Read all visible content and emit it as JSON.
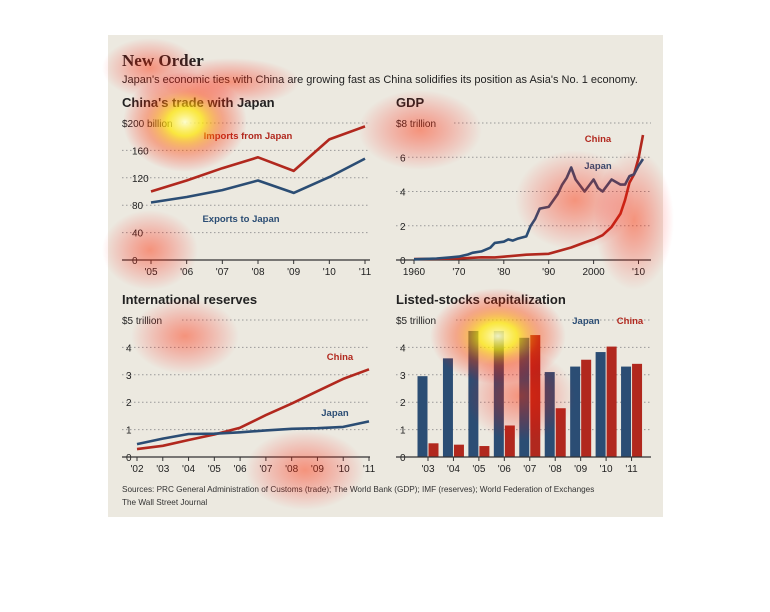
{
  "header": {
    "title": "New Order",
    "subtitle": "Japan's economic ties with China are growing fast as China solidifies its position as Asia's No. 1 economy."
  },
  "footer": {
    "sources": "Sources: PRC General Administration of Customs (trade); The World Bank (GDP); IMF (reserves); World Federation of Exchanges",
    "credit": "The Wall Street Journal"
  },
  "colors": {
    "background": "#ece9e0",
    "china": "#b1281e",
    "japan": "#2b4d74",
    "grid": "#999999",
    "text": "#222222"
  },
  "chart_data": [
    {
      "id": "trade",
      "type": "line",
      "title": "China's trade with Japan",
      "unit_label": "$200 billion",
      "x": [
        "'05",
        "'06",
        "'07",
        "'08",
        "'09",
        "'10",
        "'11"
      ],
      "yticks": [
        "0",
        "40",
        "80",
        "120",
        "160"
      ],
      "ylim": [
        0,
        200
      ],
      "series": [
        {
          "name": "Imports from Japan",
          "color": "#b1281e",
          "values": [
            100,
            116,
            134,
            150,
            130,
            176,
            195
          ]
        },
        {
          "name": "Exports to Japan",
          "color": "#2b4d74",
          "values": [
            84,
            92,
            102,
            116,
            98,
            121,
            148
          ]
        }
      ]
    },
    {
      "id": "gdp",
      "type": "line",
      "title": "GDP",
      "unit_label": "$8 trillion",
      "xticks": [
        "1960",
        "'70",
        "'80",
        "'90",
        "2000",
        "'10"
      ],
      "yticks": [
        "0",
        "2",
        "4",
        "6"
      ],
      "xlim": [
        1960,
        2011
      ],
      "ylim": [
        0,
        8
      ],
      "series": [
        {
          "name": "China",
          "color": "#b1281e",
          "x": [
            1960,
            1965,
            1970,
            1975,
            1978,
            1980,
            1985,
            1990,
            1995,
            1998,
            2000,
            2002,
            2004,
            2006,
            2007,
            2008,
            2009,
            2010,
            2011
          ],
          "values": [
            0.06,
            0.07,
            0.09,
            0.16,
            0.15,
            0.19,
            0.31,
            0.36,
            0.73,
            1.02,
            1.2,
            1.45,
            1.93,
            2.71,
            3.49,
            4.52,
            4.99,
            5.93,
            7.3
          ]
        },
        {
          "name": "Japan",
          "color": "#2b4d74",
          "x": [
            1960,
            1965,
            1968,
            1970,
            1972,
            1973,
            1975,
            1977,
            1978,
            1980,
            1981,
            1982,
            1983,
            1985,
            1986,
            1987,
            1988,
            1990,
            1992,
            1993,
            1994,
            1995,
            1996,
            1998,
            2000,
            2001,
            2002,
            2004,
            2006,
            2007,
            2008,
            2009,
            2010,
            2011
          ],
          "values": [
            0.04,
            0.09,
            0.15,
            0.2,
            0.32,
            0.42,
            0.5,
            0.72,
            1.0,
            1.07,
            1.2,
            1.13,
            1.24,
            1.38,
            2.0,
            2.4,
            3.0,
            3.1,
            3.85,
            4.4,
            4.8,
            5.4,
            4.7,
            4.0,
            4.7,
            4.2,
            4.0,
            4.7,
            4.4,
            4.4,
            4.9,
            5.0,
            5.5,
            5.9
          ]
        }
      ]
    },
    {
      "id": "reserves",
      "type": "line",
      "title": "International reserves",
      "unit_label": "$5 trillion",
      "x": [
        "'02",
        "'03",
        "'04",
        "'05",
        "'06",
        "'07",
        "'08",
        "'09",
        "'10",
        "'11"
      ],
      "yticks": [
        "0",
        "1",
        "2",
        "3",
        "4"
      ],
      "ylim": [
        0,
        5
      ],
      "series": [
        {
          "name": "China",
          "color": "#b1281e",
          "values": [
            0.29,
            0.41,
            0.62,
            0.82,
            1.07,
            1.53,
            1.95,
            2.4,
            2.85,
            3.2
          ]
        },
        {
          "name": "Japan",
          "color": "#2b4d74",
          "values": [
            0.47,
            0.67,
            0.84,
            0.85,
            0.9,
            0.97,
            1.03,
            1.05,
            1.1,
            1.3
          ]
        }
      ]
    },
    {
      "id": "stocks",
      "type": "bar",
      "title": "Listed-stocks capitalization",
      "unit_label": "$5 trillion",
      "categories": [
        "'03",
        "'04",
        "'05",
        "'06",
        "'07",
        "'08",
        "'09",
        "'10",
        "'11"
      ],
      "yticks": [
        "0",
        "1",
        "2",
        "3",
        "4"
      ],
      "ylim": [
        0,
        5
      ],
      "series": [
        {
          "name": "Japan",
          "color": "#2b4d74",
          "values": [
            2.95,
            3.6,
            4.6,
            4.6,
            4.35,
            3.1,
            3.3,
            3.83,
            3.3
          ]
        },
        {
          "name": "China",
          "color": "#b1281e",
          "values": [
            0.5,
            0.45,
            0.4,
            1.15,
            4.45,
            1.78,
            3.55,
            4.03,
            3.4
          ]
        }
      ]
    }
  ]
}
